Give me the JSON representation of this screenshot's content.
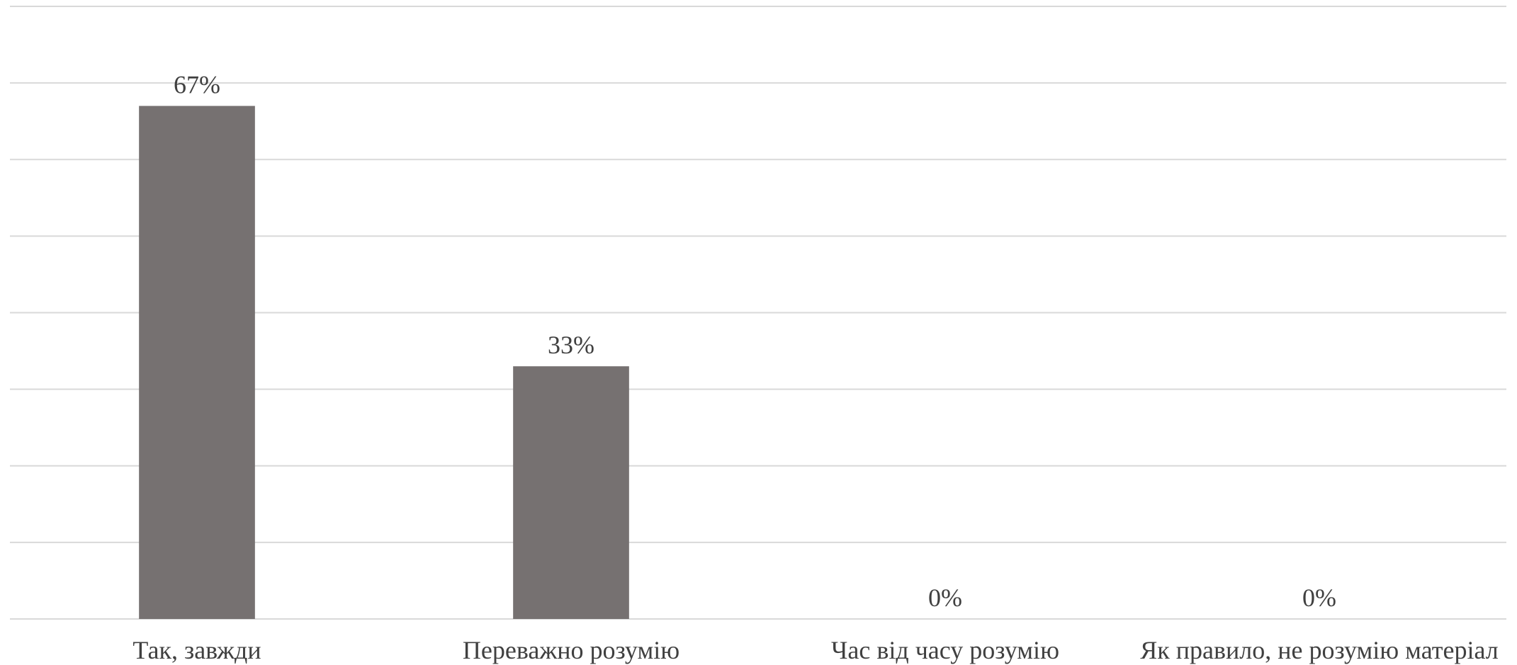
{
  "chart_data": {
    "type": "bar",
    "categories": [
      "Так, завжди",
      "Переважно розумію",
      "Час від часу розумію",
      "Як правило, не розумію матеріал"
    ],
    "values": [
      67,
      33,
      0,
      0
    ],
    "data_labels": [
      "67%",
      "33%",
      "0%",
      "0%"
    ],
    "title": "",
    "xlabel": "",
    "ylabel": "",
    "ylim": [
      0,
      80
    ],
    "y_tick_step": 10,
    "y_tick_labels_visible": false,
    "grid": true,
    "legend": "none",
    "colors": {
      "bar": "#767171",
      "grid": "#d9d9d9",
      "text": "#404040"
    }
  }
}
